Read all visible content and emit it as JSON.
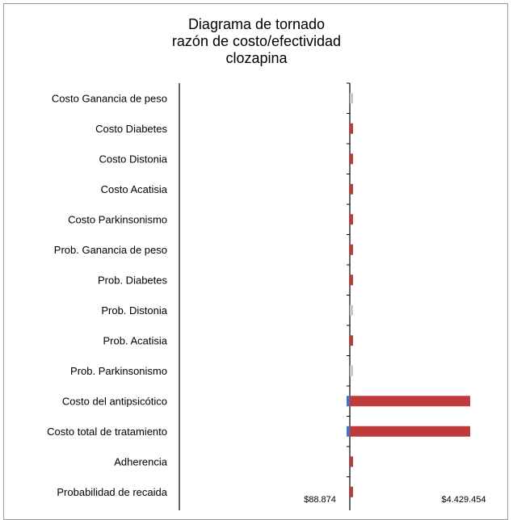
{
  "chart_data": {
    "type": "bar",
    "title": [
      "Diagrama de tornado",
      "razón de costo/efectividad",
      "clozapina"
    ],
    "categories": [
      "Costo Ganancia de peso",
      "Costo Diabetes",
      "Costo Distonia",
      "Costo Acatisia",
      "Costo Parkinsonismo",
      "Prob. Ganancia de peso",
      "Prob. Diabetes",
      "Prob. Distonia",
      "Prob. Acatisia",
      "Prob. Parkinsonismo",
      "Costo del antipsicótico",
      "Costo total de tratamiento",
      "Adherencia",
      "Probabilidad de recaida"
    ],
    "base_value": 88874,
    "series": [
      {
        "color": "#4472c4",
        "values": [
          0,
          0,
          0,
          0,
          0,
          0,
          0,
          0,
          0,
          0,
          -25000,
          -25000,
          0,
          0
        ]
      },
      {
        "color": "#c0393b",
        "values": [
          0,
          30000,
          30000,
          30000,
          25000,
          25000,
          25000,
          0,
          25000,
          0,
          4340580,
          4340580,
          25000,
          25000
        ]
      },
      {
        "color": "#c8c8c8",
        "values": [
          30000,
          0,
          0,
          0,
          0,
          0,
          0,
          30000,
          0,
          30000,
          0,
          0,
          0,
          0
        ]
      }
    ],
    "x_tick_labels": [
      "$88.874",
      "$4.429.454"
    ],
    "x_ticks": [
      88874,
      4429454
    ],
    "xlim": [
      88874,
      4429454
    ],
    "grid": false,
    "legend": "none"
  }
}
